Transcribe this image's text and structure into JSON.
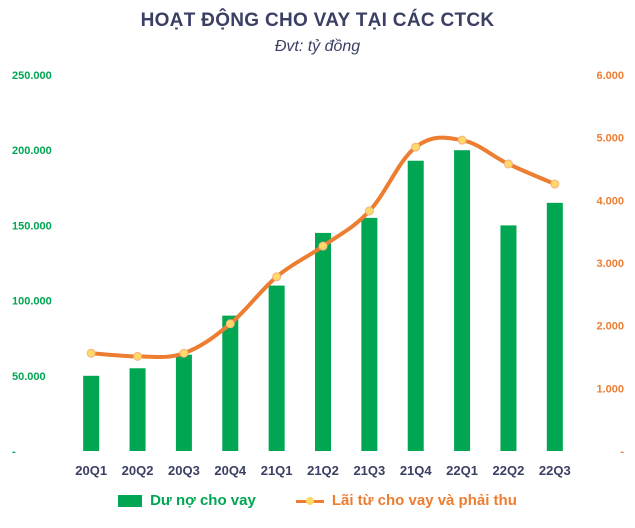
{
  "chart_data": {
    "type": "bar+line",
    "title": "HOẠT ĐỘNG CHO VAY TẠI CÁC CTCK",
    "subtitle": "Đvt: tỷ đồng",
    "categories": [
      "20Q1",
      "20Q2",
      "20Q3",
      "20Q4",
      "21Q1",
      "21Q2",
      "21Q3",
      "21Q4",
      "22Q1",
      "22Q2",
      "22Q3"
    ],
    "series": [
      {
        "name": "Dư nợ cho vay",
        "type": "bar",
        "axis": "left",
        "color": "#00a651",
        "values": [
          50000,
          55000,
          64000,
          90000,
          110000,
          145000,
          155000,
          193000,
          200000,
          150000,
          165000
        ]
      },
      {
        "name": "Lãi từ cho vay và phải thu",
        "type": "line",
        "axis": "right",
        "color": "#ed7d31",
        "marker_color": "#ffd966",
        "values": [
          1560,
          1510,
          1560,
          2030,
          2780,
          3270,
          3830,
          4850,
          4960,
          4580,
          4260
        ]
      }
    ],
    "y_left": {
      "range": [
        0,
        250000
      ],
      "ticks": [
        "-",
        "50.000",
        "100.000",
        "150.000",
        "200.000",
        "250.000"
      ],
      "color": "#00a651"
    },
    "y_right": {
      "range": [
        0,
        6000
      ],
      "ticks": [
        "-",
        "1.000",
        "2.000",
        "3.000",
        "4.000",
        "5.000",
        "6.000"
      ],
      "color": "#ed7d31"
    },
    "grid": false,
    "legend_position": "bottom"
  }
}
